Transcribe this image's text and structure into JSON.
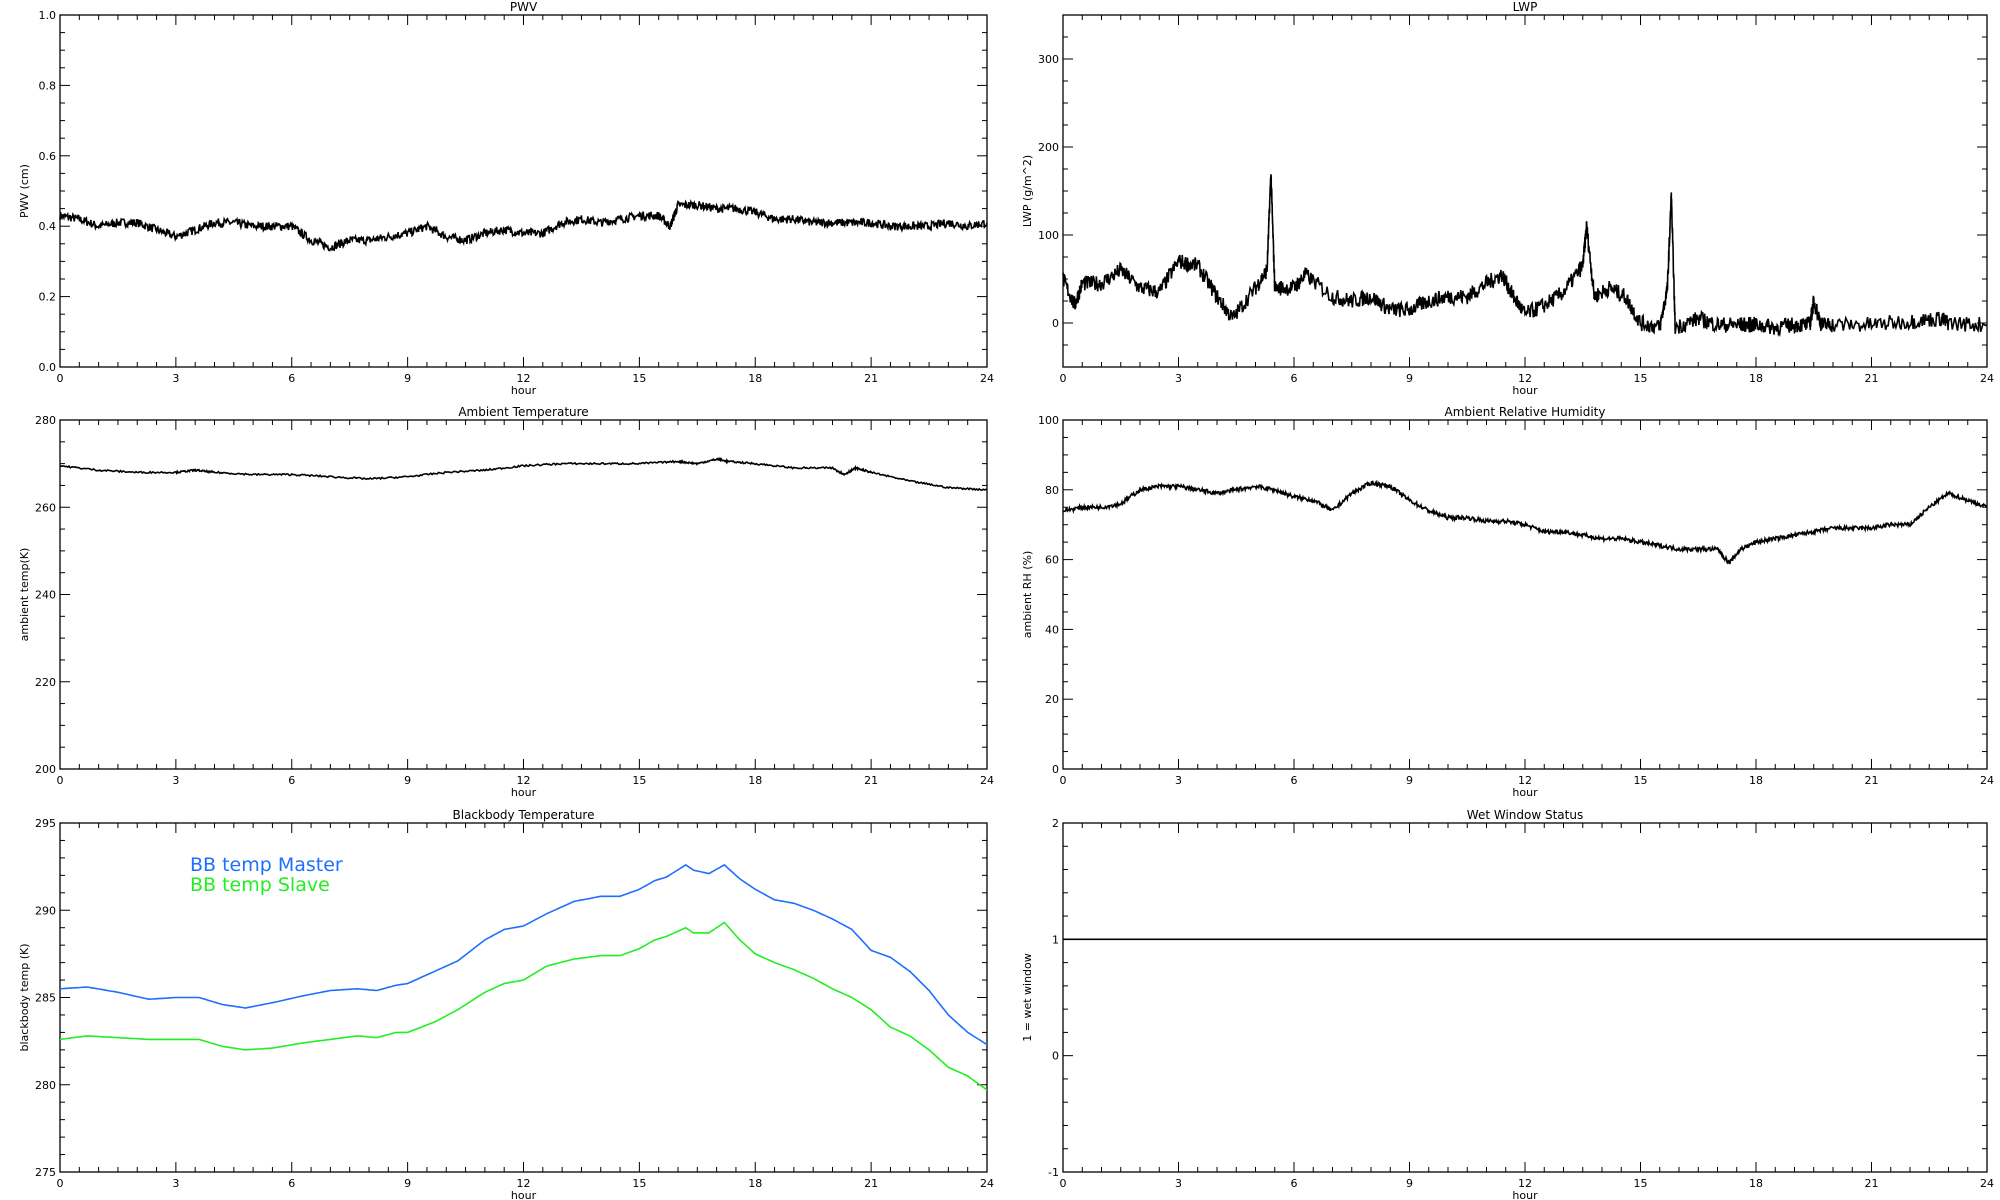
{
  "chart_data": [
    {
      "id": "pwv",
      "type": "line",
      "title": "PWV",
      "xlabel": "hour",
      "ylabel": "PWV (cm)",
      "xlim": [
        0,
        24
      ],
      "ylim": [
        0,
        1
      ],
      "yticks": [
        0.0,
        0.2,
        0.4,
        0.6,
        0.8,
        1.0
      ],
      "ytick_labels": [
        "0.0",
        "0.2",
        "0.4",
        "0.6",
        "0.8",
        "1.0"
      ],
      "xticks": [
        0,
        3,
        6,
        9,
        12,
        15,
        18,
        21,
        24
      ],
      "xtick_labels": [
        "0",
        "3",
        "6",
        "9",
        "12",
        "15",
        "18",
        "21",
        "24"
      ],
      "noise": 0.012,
      "series": [
        {
          "name": "PWV",
          "color": "#000000",
          "x": [
            0,
            0.5,
            1,
            1.5,
            2,
            2.5,
            3,
            3.5,
            4,
            4.5,
            5,
            5.5,
            6,
            6.5,
            7,
            7.5,
            8,
            8.5,
            9,
            9.5,
            10,
            10.5,
            11,
            11.5,
            12,
            12.5,
            13,
            13.5,
            14,
            14.5,
            15,
            15.5,
            15.8,
            16,
            16.5,
            17,
            17.5,
            18,
            18.5,
            19,
            19.5,
            20,
            20.5,
            21,
            21.5,
            22,
            22.5,
            23,
            23.5,
            24
          ],
          "y": [
            0.43,
            0.42,
            0.4,
            0.41,
            0.41,
            0.39,
            0.37,
            0.39,
            0.41,
            0.41,
            0.4,
            0.4,
            0.4,
            0.36,
            0.34,
            0.36,
            0.36,
            0.37,
            0.38,
            0.4,
            0.37,
            0.36,
            0.38,
            0.39,
            0.38,
            0.38,
            0.41,
            0.42,
            0.41,
            0.42,
            0.43,
            0.43,
            0.4,
            0.46,
            0.46,
            0.45,
            0.45,
            0.44,
            0.42,
            0.42,
            0.41,
            0.41,
            0.41,
            0.41,
            0.4,
            0.4,
            0.4,
            0.41,
            0.4,
            0.41
          ]
        }
      ]
    },
    {
      "id": "lwp",
      "type": "line",
      "title": "LWP",
      "xlabel": "hour",
      "ylabel": "LWP (g/m^2)",
      "xlim": [
        0,
        24
      ],
      "ylim": [
        -50,
        350
      ],
      "yticks": [
        0,
        100,
        200,
        300
      ],
      "ytick_labels": [
        "0",
        "100",
        "200",
        "300"
      ],
      "xticks": [
        0,
        3,
        6,
        9,
        12,
        15,
        18,
        21,
        24
      ],
      "xtick_labels": [
        "0",
        "3",
        "6",
        "9",
        "12",
        "15",
        "18",
        "21",
        "24"
      ],
      "noise": 9,
      "series": [
        {
          "name": "LWP",
          "color": "#000000",
          "x": [
            0,
            0.3,
            0.5,
            1,
            1.5,
            2,
            2.5,
            3,
            3.5,
            4,
            4.4,
            5,
            5.3,
            5.4,
            5.5,
            6,
            6.3,
            7,
            7.5,
            8,
            8.5,
            9,
            9.5,
            10,
            10.5,
            11,
            11.4,
            11.7,
            12,
            12.5,
            13,
            13.5,
            13.6,
            13.8,
            14.2,
            14.6,
            15,
            15.5,
            15.7,
            15.8,
            15.9,
            16.5,
            17,
            17.5,
            17.8,
            18,
            18.5,
            19,
            19.4,
            19.5,
            19.7,
            20,
            21,
            22,
            22.8,
            23,
            24
          ],
          "y": [
            50,
            20,
            45,
            45,
            60,
            40,
            35,
            70,
            65,
            30,
            5,
            40,
            60,
            170,
            40,
            40,
            55,
            30,
            25,
            30,
            15,
            15,
            25,
            30,
            30,
            45,
            55,
            30,
            10,
            20,
            35,
            65,
            110,
            30,
            40,
            30,
            0,
            -5,
            40,
            145,
            -5,
            5,
            -2,
            -2,
            -2,
            -2,
            -5,
            -2,
            -2,
            25,
            -2,
            -2,
            -2,
            2,
            5,
            0,
            -2
          ]
        }
      ]
    },
    {
      "id": "ambient-temp",
      "type": "line",
      "title": "Ambient Temperature",
      "xlabel": "hour",
      "ylabel": "ambient temp(K)",
      "xlim": [
        0,
        24
      ],
      "ylim": [
        200,
        280
      ],
      "yticks": [
        200,
        220,
        240,
        260,
        280
      ],
      "ytick_labels": [
        "200",
        "220",
        "240",
        "260",
        "280"
      ],
      "xticks": [
        0,
        3,
        6,
        9,
        12,
        15,
        18,
        21,
        24
      ],
      "xtick_labels": [
        "0",
        "3",
        "6",
        "9",
        "12",
        "15",
        "18",
        "21",
        "24"
      ],
      "noise": 0.2,
      "series": [
        {
          "name": "Ambient Temperature",
          "color": "#000000",
          "x": [
            0,
            1,
            2,
            3,
            3.5,
            4,
            5,
            6,
            7,
            8,
            9,
            10,
            11,
            12,
            13,
            14,
            15,
            16,
            16.5,
            17,
            17.3,
            18,
            19,
            20,
            20.3,
            20.6,
            21,
            22,
            23,
            24
          ],
          "y": [
            269.5,
            268.5,
            268,
            268,
            268.5,
            268,
            267.5,
            267.5,
            267,
            266.5,
            267,
            268,
            268.5,
            269.5,
            270,
            270,
            270,
            270.5,
            270,
            271,
            270.5,
            270,
            269,
            269,
            267.5,
            269,
            268,
            266,
            264.5,
            264
          ]
        }
      ]
    },
    {
      "id": "ambient-rh",
      "type": "line",
      "title": "Ambient Relative Humidity",
      "xlabel": "hour",
      "ylabel": "ambient RH (%)",
      "xlim": [
        0,
        24
      ],
      "ylim": [
        0,
        100
      ],
      "yticks": [
        0,
        20,
        40,
        60,
        80,
        100
      ],
      "ytick_labels": [
        "0",
        "20",
        "40",
        "60",
        "80",
        "100"
      ],
      "xticks": [
        0,
        3,
        6,
        9,
        12,
        15,
        18,
        21,
        24
      ],
      "xtick_labels": [
        "0",
        "3",
        "6",
        "9",
        "12",
        "15",
        "18",
        "21",
        "24"
      ],
      "noise": 0.6,
      "series": [
        {
          "name": "Ambient RH",
          "color": "#000000",
          "x": [
            0,
            0.5,
            1,
            1.5,
            2,
            2.5,
            3,
            3.5,
            4,
            4.5,
            5,
            5.5,
            6,
            6.5,
            7,
            7.5,
            8,
            8.5,
            9,
            9.5,
            10,
            10.5,
            11,
            11.5,
            12,
            12.5,
            13,
            13.5,
            14,
            14.5,
            15,
            15.5,
            16,
            16.5,
            17,
            17.3,
            17.6,
            18,
            18.5,
            19,
            19.5,
            20,
            20.5,
            21,
            21.5,
            22,
            22.5,
            23,
            23.5,
            24
          ],
          "y": [
            74,
            75,
            75,
            76,
            80,
            81,
            81,
            80,
            79,
            80,
            81,
            80,
            78,
            77,
            74,
            79,
            82,
            81,
            77,
            74,
            72,
            72,
            71,
            71,
            70,
            68,
            68,
            67,
            66,
            66,
            65,
            64,
            63,
            63,
            63,
            59,
            63,
            65,
            66,
            67,
            68,
            69,
            69,
            69,
            70,
            70,
            75,
            79,
            77,
            75
          ]
        }
      ]
    },
    {
      "id": "bb-temp",
      "type": "line",
      "title": "Blackbody Temperature",
      "xlabel": "hour",
      "ylabel": "blackbody temp (K)",
      "xlim": [
        0,
        24
      ],
      "ylim": [
        275,
        295
      ],
      "yticks": [
        275,
        280,
        285,
        290,
        295
      ],
      "ytick_labels": [
        "275",
        "280",
        "285",
        "290",
        "295"
      ],
      "xticks": [
        0,
        3,
        6,
        9,
        12,
        15,
        18,
        21,
        24
      ],
      "xtick_labels": [
        "0",
        "3",
        "6",
        "9",
        "12",
        "15",
        "18",
        "21",
        "24"
      ],
      "legend": "top-left",
      "noise": 0,
      "series": [
        {
          "name": "BB temp Master",
          "color": "#1e6fff",
          "x": [
            0,
            0.7,
            1.5,
            2.3,
            3,
            3.6,
            4.2,
            4.8,
            5.5,
            6.3,
            7,
            7.7,
            8.2,
            8.7,
            9,
            9.7,
            10.3,
            11,
            11.5,
            12,
            12.6,
            13.3,
            14,
            14.5,
            15,
            15.4,
            15.7,
            16.2,
            16.4,
            16.8,
            17.2,
            17.6,
            18,
            18.5,
            19,
            19.5,
            20,
            20.5,
            21,
            21.5,
            22,
            22.5,
            23,
            23.5,
            24
          ],
          "y": [
            285.5,
            285.6,
            285.3,
            284.9,
            285.0,
            285.0,
            284.6,
            284.4,
            284.7,
            285.1,
            285.4,
            285.5,
            285.4,
            285.7,
            285.8,
            286.5,
            287.1,
            288.3,
            288.9,
            289.1,
            289.8,
            290.5,
            290.8,
            290.8,
            291.2,
            291.7,
            291.9,
            292.6,
            292.3,
            292.1,
            292.6,
            291.8,
            291.2,
            290.6,
            290.4,
            290.0,
            289.5,
            288.9,
            287.7,
            287.3,
            286.5,
            285.4,
            284.0,
            283.0,
            282.3
          ]
        },
        {
          "name": "BB temp Slave",
          "color": "#22ee22",
          "x": [
            0,
            0.7,
            1.5,
            2.3,
            3,
            3.6,
            4.2,
            4.8,
            5.5,
            6.3,
            7,
            7.7,
            8.2,
            8.7,
            9,
            9.7,
            10.3,
            11,
            11.5,
            12,
            12.6,
            13.3,
            14,
            14.5,
            15,
            15.4,
            15.7,
            16.2,
            16.4,
            16.8,
            17.2,
            17.6,
            18,
            18.5,
            19,
            19.5,
            20,
            20.5,
            21,
            21.5,
            22,
            22.5,
            23,
            23.5,
            24
          ],
          "y": [
            282.6,
            282.8,
            282.7,
            282.6,
            282.6,
            282.6,
            282.2,
            282.0,
            282.1,
            282.4,
            282.6,
            282.8,
            282.7,
            283.0,
            283.0,
            283.6,
            284.3,
            285.3,
            285.8,
            286.0,
            286.8,
            287.2,
            287.4,
            287.4,
            287.8,
            288.3,
            288.5,
            289.0,
            288.7,
            288.7,
            289.3,
            288.3,
            287.5,
            287.0,
            286.6,
            286.1,
            285.5,
            285.0,
            284.3,
            283.3,
            282.8,
            282.0,
            281.0,
            280.5,
            279.7
          ]
        }
      ]
    },
    {
      "id": "wet-window",
      "type": "line",
      "title": "Wet Window Status",
      "xlabel": "hour",
      "ylabel": "1 = wet window",
      "xlim": [
        0,
        24
      ],
      "ylim": [
        -1,
        2
      ],
      "yticks": [
        -1,
        0,
        1,
        2
      ],
      "ytick_labels": [
        "-1",
        "0",
        "1",
        "2"
      ],
      "xticks": [
        0,
        3,
        6,
        9,
        12,
        15,
        18,
        21,
        24
      ],
      "xtick_labels": [
        "0",
        "3",
        "6",
        "9",
        "12",
        "15",
        "18",
        "21",
        "24"
      ],
      "noise": 0,
      "series": [
        {
          "name": "Wet window",
          "color": "#000000",
          "x": [
            0,
            24
          ],
          "y": [
            1,
            1
          ]
        }
      ]
    }
  ]
}
